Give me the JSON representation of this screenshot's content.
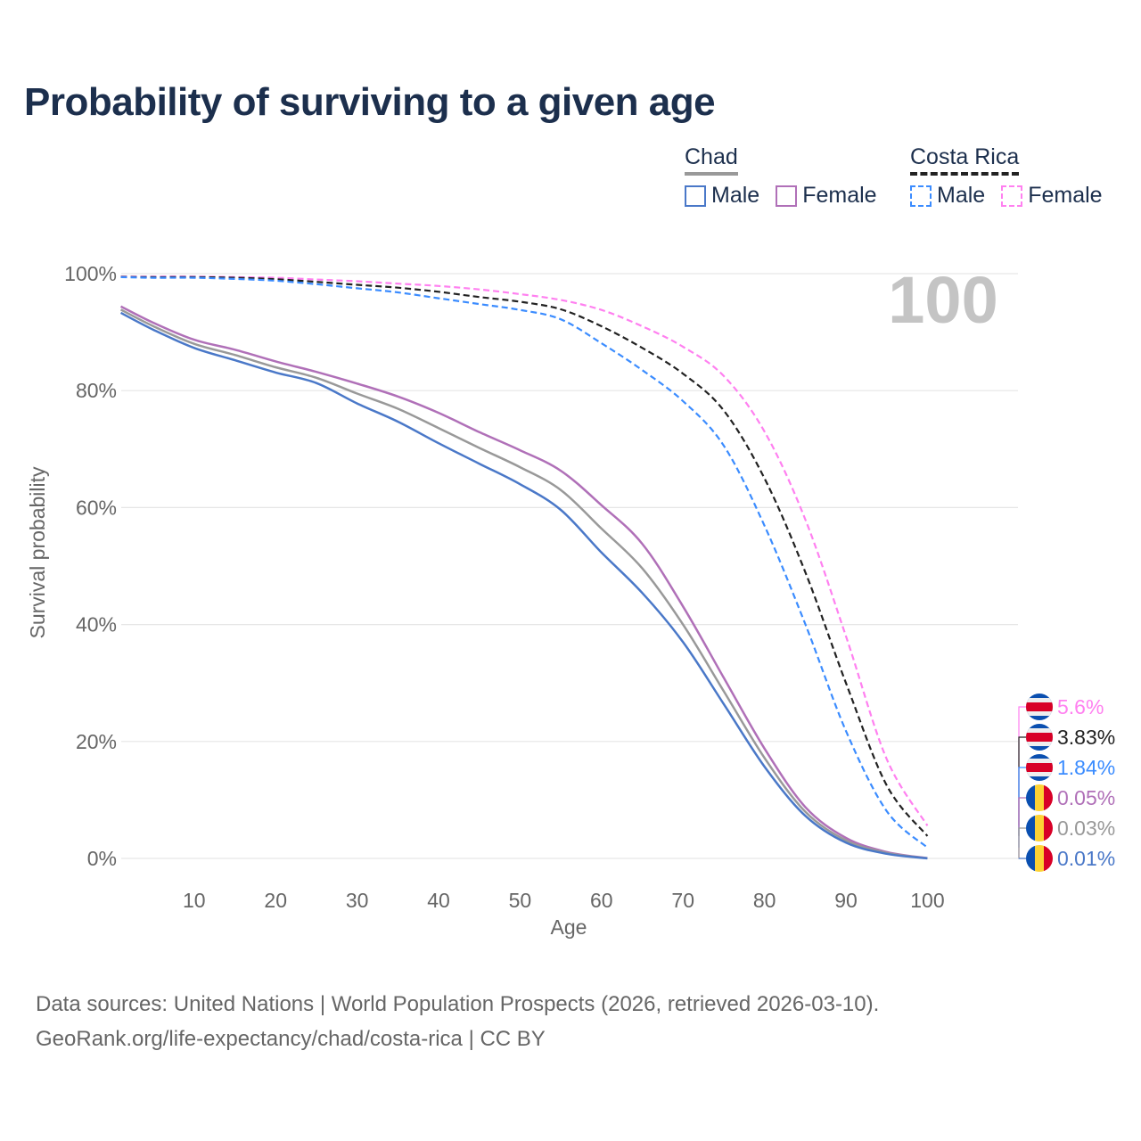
{
  "title": "Probability of surviving to a given age",
  "legend": {
    "groups": [
      {
        "name": "Chad",
        "style": "solid",
        "items": [
          {
            "label": "Male",
            "color": "#4a78c8"
          },
          {
            "label": "Female",
            "color": "#b070b8"
          }
        ]
      },
      {
        "name": "Costa Rica",
        "style": "dashed",
        "items": [
          {
            "label": "Male",
            "color": "#3b8cff"
          },
          {
            "label": "Female",
            "color": "#ff80f0"
          }
        ]
      }
    ]
  },
  "age_watermark": "100",
  "footer": {
    "line1": "Data sources: United Nations | World Population Prospects (2026, retrieved 2026-03-10).",
    "line2": "GeoRank.org/life-expectancy/chad/costa-rica | CC BY"
  },
  "chart_data": {
    "type": "line",
    "xlabel": "Age",
    "ylabel": "Survival probability",
    "xlim": [
      0,
      100
    ],
    "ylim": [
      0,
      100
    ],
    "x_ticks": [
      10,
      20,
      30,
      40,
      50,
      60,
      70,
      80,
      90,
      100
    ],
    "y_ticks": [
      0,
      20,
      40,
      60,
      80,
      100
    ],
    "y_tick_labels": [
      "0%",
      "20%",
      "40%",
      "60%",
      "80%",
      "100%"
    ],
    "grid": true,
    "x": [
      1,
      5,
      10,
      15,
      20,
      25,
      30,
      35,
      40,
      45,
      50,
      55,
      60,
      65,
      70,
      75,
      80,
      85,
      90,
      95,
      100
    ],
    "series": [
      {
        "name": "Costa Rica Female",
        "country": "costa-rica",
        "color": "#ff80f0",
        "dashed": true,
        "end_label": "5.6%",
        "values": [
          99.5,
          99.5,
          99.5,
          99.4,
          99.3,
          99.0,
          98.7,
          98.3,
          97.9,
          97.3,
          96.5,
          95.5,
          93.8,
          91.0,
          87.5,
          82.5,
          73.0,
          58.0,
          38.0,
          17.0,
          5.6
        ]
      },
      {
        "name": "Costa Rica Total",
        "country": "costa-rica",
        "color": "#222222",
        "dashed": true,
        "end_label": "3.83%",
        "values": [
          99.45,
          99.4,
          99.4,
          99.3,
          99.05,
          98.6,
          98.1,
          97.6,
          96.9,
          96.0,
          95.2,
          93.9,
          91.0,
          87.3,
          82.9,
          76.6,
          65.0,
          49.0,
          30.0,
          12.5,
          3.83
        ]
      },
      {
        "name": "Costa Rica Male",
        "country": "costa-rica",
        "color": "#3b8cff",
        "dashed": true,
        "end_label": "1.84%",
        "values": [
          99.4,
          99.3,
          99.3,
          99.1,
          98.8,
          98.2,
          97.5,
          96.8,
          95.8,
          94.8,
          93.8,
          92.2,
          88.1,
          83.5,
          78.2,
          70.6,
          56.9,
          40.1,
          21.8,
          8.1,
          1.84
        ]
      },
      {
        "name": "Chad Female",
        "country": "chad",
        "color": "#b070b8",
        "dashed": false,
        "end_label": "0.05%",
        "values": [
          94.4,
          91.6,
          88.7,
          87.0,
          85.0,
          83.2,
          81.2,
          79.0,
          76.2,
          72.9,
          69.8,
          66.3,
          60.4,
          53.8,
          43.1,
          30.9,
          18.8,
          8.8,
          3.5,
          1.1,
          0.05
        ]
      },
      {
        "name": "Chad Total",
        "country": "chad",
        "color": "#999999",
        "dashed": false,
        "end_label": "0.03%",
        "values": [
          93.85,
          91.0,
          88.0,
          86.1,
          84.0,
          82.2,
          79.5,
          76.9,
          73.6,
          70.2,
          66.9,
          63.0,
          56.4,
          49.6,
          40.0,
          28.6,
          17.2,
          8.0,
          3.1,
          0.95,
          0.03
        ]
      },
      {
        "name": "Chad Male",
        "country": "chad",
        "color": "#4a78c8",
        "dashed": false,
        "end_label": "0.01%",
        "values": [
          93.3,
          90.4,
          87.3,
          85.2,
          83.1,
          81.3,
          77.8,
          74.7,
          71.0,
          67.5,
          64.0,
          59.6,
          52.3,
          45.4,
          37.0,
          26.4,
          15.7,
          7.3,
          2.7,
          0.8,
          0.01
        ]
      }
    ]
  }
}
